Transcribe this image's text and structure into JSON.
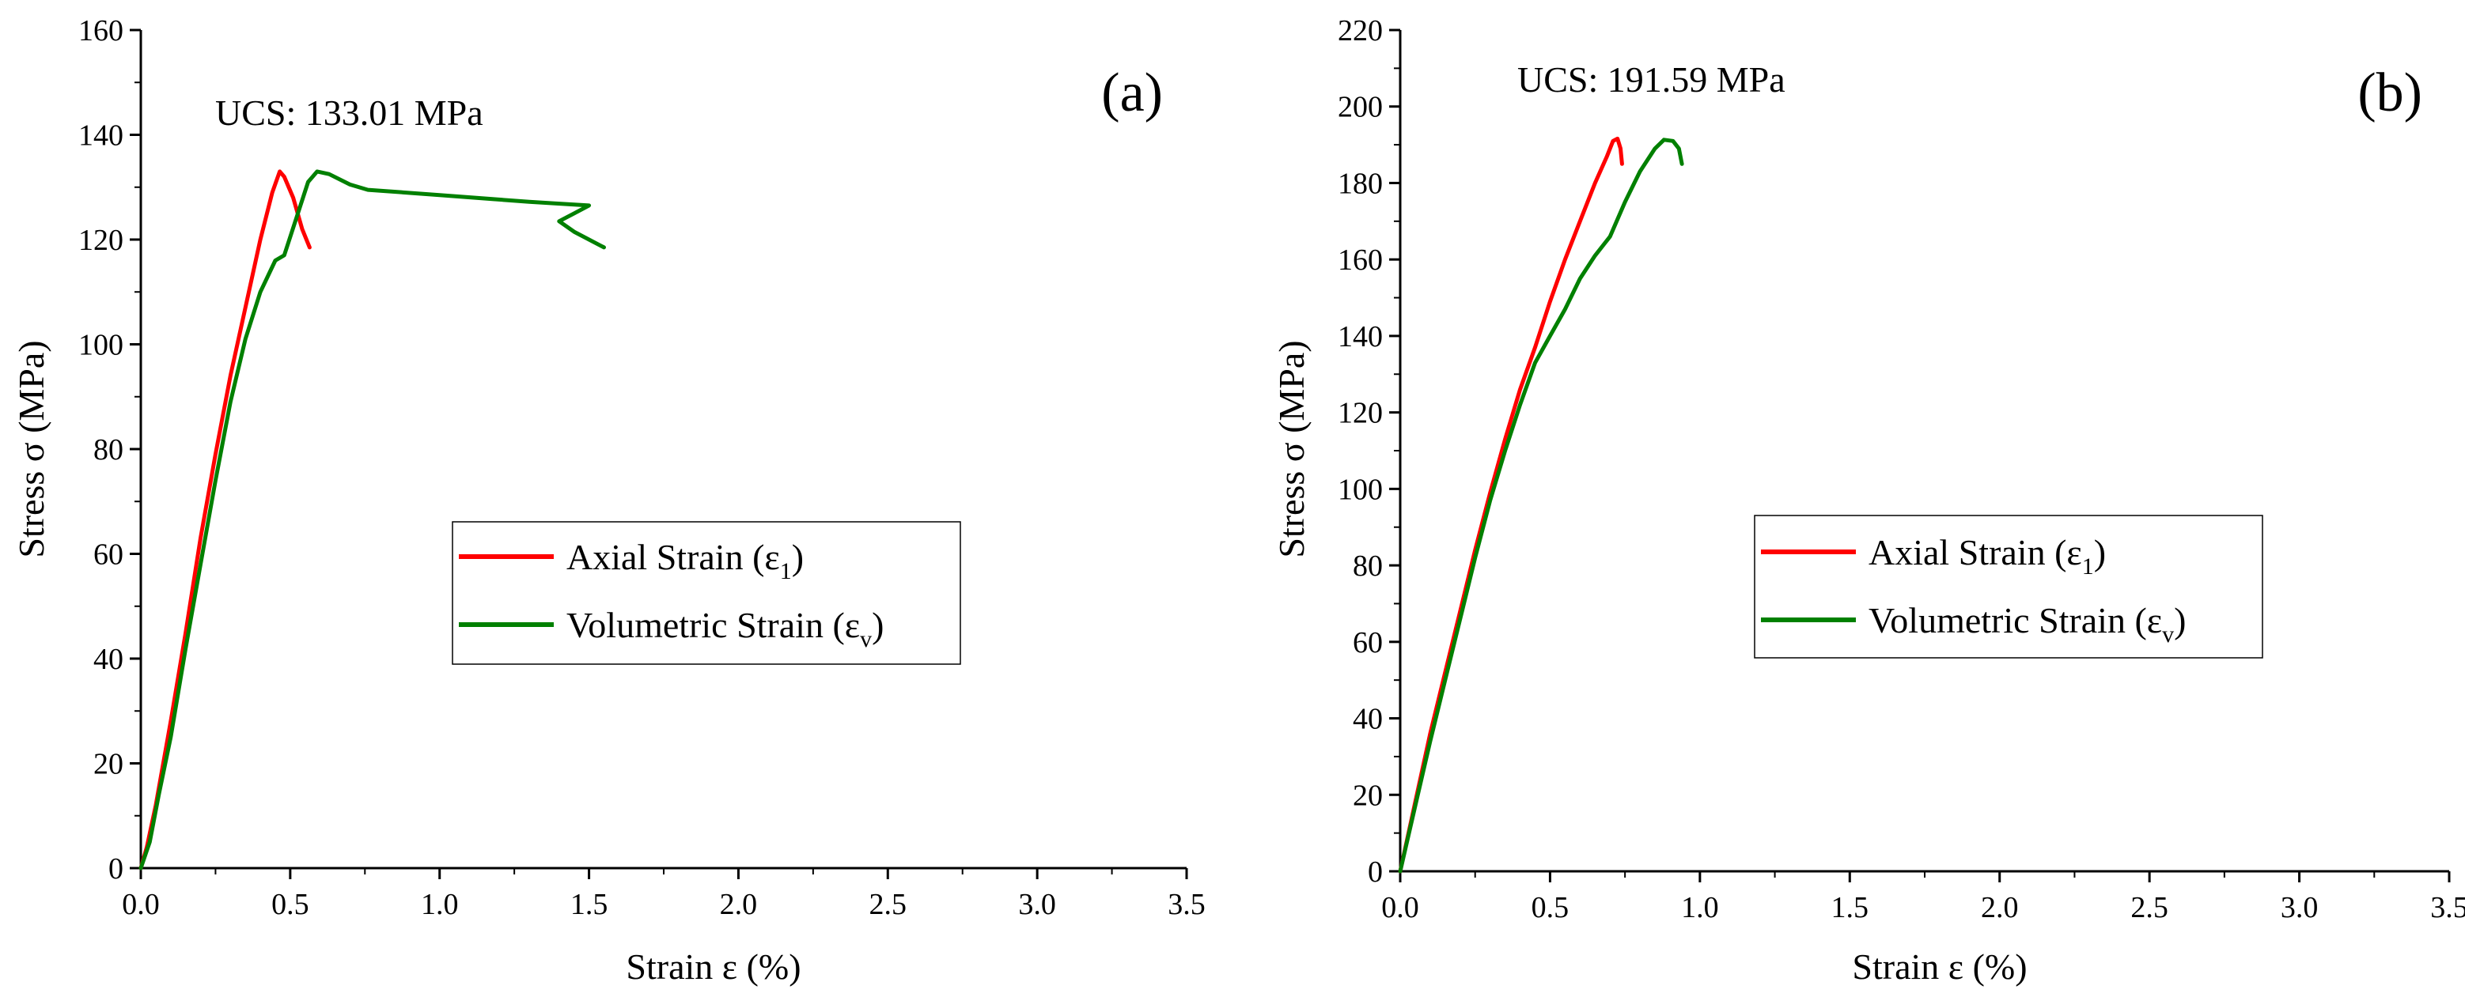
{
  "chart_data": [
    {
      "type": "line",
      "panel_label": "(a)",
      "annotation": "UCS: 133.01 MPa",
      "xlabel": "Strain ε (%)",
      "ylabel": "Stress σ (MPa)",
      "xlim": [
        0,
        3.5
      ],
      "ylim": [
        0,
        160
      ],
      "xticks": [
        "0.0",
        "0.5",
        "1.0",
        "1.5",
        "2.0",
        "2.5",
        "3.0",
        "3.5"
      ],
      "yticks": [
        "0",
        "20",
        "40",
        "60",
        "80",
        "100",
        "120",
        "140",
        "160"
      ],
      "legend_position": "center",
      "series": [
        {
          "name": "Axial Strain (ε",
          "subscript": "1",
          "suffix": ")",
          "color": "#ff0000",
          "points": [
            [
              0,
              0
            ],
            [
              0.02,
              4
            ],
            [
              0.05,
              12
            ],
            [
              0.1,
              28
            ],
            [
              0.15,
              45
            ],
            [
              0.2,
              63
            ],
            [
              0.25,
              79
            ],
            [
              0.3,
              94
            ],
            [
              0.35,
              107
            ],
            [
              0.4,
              120
            ],
            [
              0.44,
              129
            ],
            [
              0.465,
              133
            ],
            [
              0.48,
              132
            ],
            [
              0.51,
              128
            ],
            [
              0.54,
              122
            ],
            [
              0.565,
              118.5
            ]
          ]
        },
        {
          "name": "Volumetric Strain (ε",
          "subscript": "v",
          "suffix": ")",
          "color": "#008000",
          "points": [
            [
              0,
              0
            ],
            [
              0.03,
              5
            ],
            [
              0.06,
              14
            ],
            [
              0.1,
              25
            ],
            [
              0.15,
              42
            ],
            [
              0.2,
              58
            ],
            [
              0.25,
              74
            ],
            [
              0.3,
              89
            ],
            [
              0.35,
              101
            ],
            [
              0.4,
              110
            ],
            [
              0.45,
              116
            ],
            [
              0.48,
              117
            ],
            [
              0.52,
              124
            ],
            [
              0.56,
              131
            ],
            [
              0.59,
              133
            ],
            [
              0.63,
              132.5
            ],
            [
              0.7,
              130.5
            ],
            [
              0.76,
              129.5
            ],
            [
              1.0,
              128.5
            ],
            [
              1.3,
              127.2
            ],
            [
              1.5,
              126.5
            ],
            [
              1.45,
              125
            ],
            [
              1.4,
              123.5
            ],
            [
              1.45,
              121.5
            ],
            [
              1.55,
              118.5
            ]
          ]
        }
      ]
    },
    {
      "type": "line",
      "panel_label": "(b)",
      "annotation": "UCS: 191.59 MPa",
      "xlabel": "Strain ε (%)",
      "ylabel": "Stress σ (MPa)",
      "xlim": [
        0,
        3.5
      ],
      "ylim": [
        0,
        220
      ],
      "xticks": [
        "0.0",
        "0.5",
        "1.0",
        "1.5",
        "2.0",
        "2.5",
        "3.0",
        "3.5"
      ],
      "yticks": [
        "0",
        "20",
        "40",
        "60",
        "80",
        "100",
        "120",
        "140",
        "160",
        "180",
        "200",
        "220"
      ],
      "legend_position": "center",
      "series": [
        {
          "name": "Axial Strain (ε",
          "subscript": "1",
          "suffix": ")",
          "color": "#ff0000",
          "points": [
            [
              0,
              0
            ],
            [
              0.05,
              18
            ],
            [
              0.1,
              36
            ],
            [
              0.15,
              52
            ],
            [
              0.2,
              68
            ],
            [
              0.25,
              84
            ],
            [
              0.3,
              99
            ],
            [
              0.35,
              113
            ],
            [
              0.4,
              126
            ],
            [
              0.45,
              137
            ],
            [
              0.5,
              149
            ],
            [
              0.55,
              160
            ],
            [
              0.6,
              170
            ],
            [
              0.65,
              180
            ],
            [
              0.69,
              187
            ],
            [
              0.71,
              191
            ],
            [
              0.725,
              191.6
            ],
            [
              0.735,
              189
            ],
            [
              0.74,
              185
            ]
          ]
        },
        {
          "name": "Volumetric Strain (ε",
          "subscript": "v",
          "suffix": ")",
          "color": "#008000",
          "points": [
            [
              0,
              0
            ],
            [
              0.05,
              17
            ],
            [
              0.1,
              34
            ],
            [
              0.15,
              50
            ],
            [
              0.2,
              66
            ],
            [
              0.25,
              82
            ],
            [
              0.3,
              97
            ],
            [
              0.35,
              110
            ],
            [
              0.4,
              122
            ],
            [
              0.45,
              133
            ],
            [
              0.5,
              140
            ],
            [
              0.55,
              147
            ],
            [
              0.6,
              155
            ],
            [
              0.65,
              161
            ],
            [
              0.7,
              166
            ],
            [
              0.75,
              175
            ],
            [
              0.8,
              183
            ],
            [
              0.85,
              189
            ],
            [
              0.88,
              191.3
            ],
            [
              0.91,
              191
            ],
            [
              0.93,
              189
            ],
            [
              0.94,
              185
            ]
          ]
        }
      ]
    }
  ]
}
